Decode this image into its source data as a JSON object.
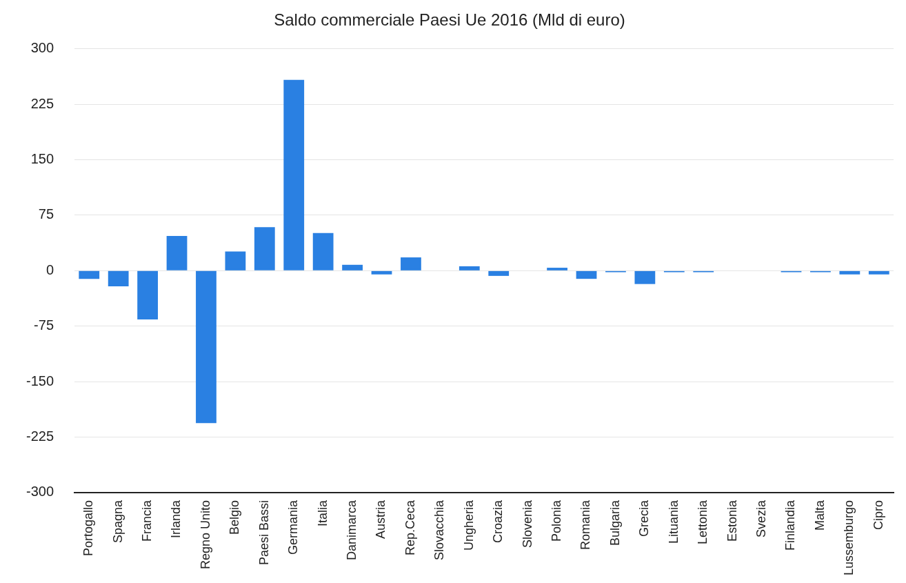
{
  "chart_data": {
    "type": "bar",
    "title": "Saldo commerciale Paesi Ue 2016 (Mld di euro)",
    "categories": [
      "Portogallo",
      "Spagna",
      "Francia",
      "Irlanda",
      "Regno Unito",
      "Belgio",
      "Paesi Bassi",
      "Germania",
      "Italia",
      "Danimarca",
      "Austria",
      "Rep.Ceca",
      "Slovacchia",
      "Ungheria",
      "Croazia",
      "Slovenia",
      "Polonia",
      "Romania",
      "Bulgaria",
      "Grecia",
      "Lituania",
      "Lettonia",
      "Estonia",
      "Svezia",
      "Finlandia",
      "Malta",
      "Lussemburgo",
      "Cipro"
    ],
    "values": [
      -11,
      -21,
      -66,
      47,
      -206,
      26,
      59,
      258,
      51,
      8,
      -5,
      18,
      0,
      6,
      -7,
      0,
      4,
      -11,
      -2,
      -18,
      -2,
      -2,
      0,
      0,
      -2,
      -2,
      -5,
      -5
    ],
    "color": "#2a80e2",
    "ylim": [
      -300,
      300
    ],
    "yticks": [
      -300,
      -225,
      -150,
      -75,
      0,
      75,
      150,
      225,
      300
    ],
    "grid": "y",
    "legend": false
  }
}
